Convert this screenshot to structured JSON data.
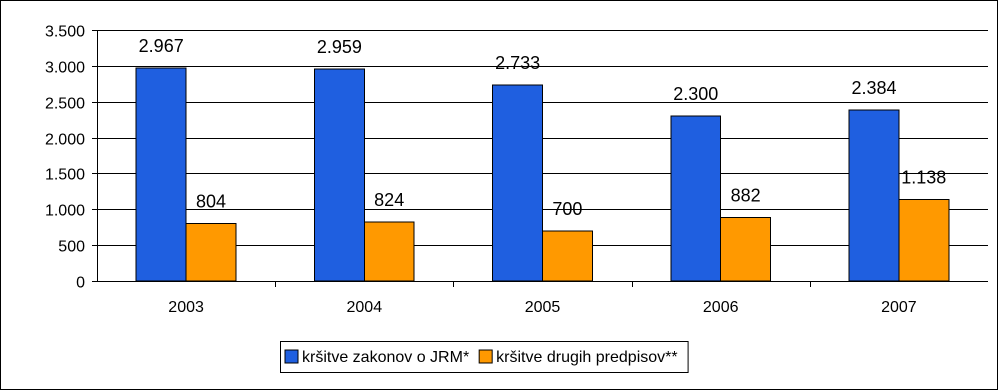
{
  "chart_data": {
    "type": "bar",
    "categories": [
      "2003",
      "2004",
      "2005",
      "2006",
      "2007"
    ],
    "series": [
      {
        "name": "kršitve zakonov o JRM*",
        "values": [
          2967,
          2959,
          2733,
          2300,
          2384
        ],
        "labels": [
          "2.967",
          "2.959",
          "2.733",
          "2.300",
          "2.384"
        ],
        "color": "#1f5fe0"
      },
      {
        "name": "kršitve drugih predpisov**",
        "values": [
          804,
          824,
          700,
          882,
          1138
        ],
        "labels": [
          "804",
          "824",
          "700",
          "882",
          "1.138"
        ],
        "color": "#ff9900"
      }
    ],
    "yticks": [
      0,
      500,
      1000,
      1500,
      2000,
      2500,
      3000,
      3500
    ],
    "ytick_labels": [
      "0",
      "500",
      "1.000",
      "1.500",
      "2.000",
      "2.500",
      "3.000",
      "3.500"
    ],
    "ylim": [
      0,
      3500
    ],
    "grid": true,
    "legend_position": "bottom",
    "title": "",
    "xlabel": "",
    "ylabel": ""
  }
}
